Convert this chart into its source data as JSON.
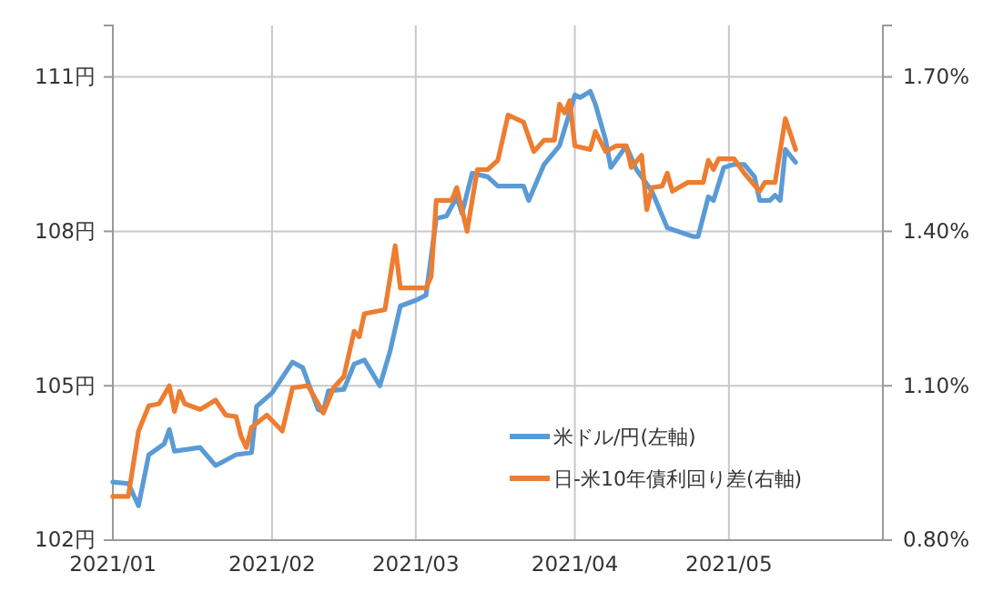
{
  "chart_data": {
    "type": "line",
    "grid": true,
    "legend": "bottom right",
    "line_style": "solid",
    "marker": "none",
    "xlim": [
      "2021-01-01",
      "2021-05-31"
    ],
    "xticks": [
      {
        "value": "2021-01-01",
        "label": "2021/01"
      },
      {
        "value": "2021-02-01",
        "label": "2021/02"
      },
      {
        "value": "2021-03-01",
        "label": "2021/03"
      },
      {
        "value": "2021-04-01",
        "label": "2021/04"
      },
      {
        "value": "2021-05-01",
        "label": "2021/05"
      }
    ],
    "ylim": [
      102,
      112
    ],
    "yticks": [
      {
        "value": 102,
        "label": "102円"
      },
      {
        "value": 105,
        "label": "105円"
      },
      {
        "value": 108,
        "label": "108円"
      },
      {
        "value": 111,
        "label": "111円"
      }
    ],
    "y2lim": [
      0.8,
      1.8
    ],
    "y2ticks": [
      {
        "value": 0.8,
        "label": "0.80%"
      },
      {
        "value": 1.1,
        "label": "1.10%"
      },
      {
        "value": 1.4,
        "label": "1.40%"
      },
      {
        "value": 1.7,
        "label": "1.70%"
      }
    ],
    "series": [
      {
        "name": "米ドル/円(左軸)",
        "color": "#5b9bd5",
        "x": [
          "2021-01-01",
          "2021-01-04",
          "2021-01-06",
          "2021-01-08",
          "2021-01-11",
          "2021-01-12",
          "2021-01-13",
          "2021-01-18",
          "2021-01-21",
          "2021-01-25",
          "2021-01-28",
          "2021-01-29",
          "2021-02-01",
          "2021-02-05",
          "2021-02-07",
          "2021-02-08",
          "2021-02-10",
          "2021-02-11",
          "2021-02-12",
          "2021-02-15",
          "2021-02-17",
          "2021-02-19",
          "2021-02-22",
          "2021-02-24",
          "2021-02-26",
          "2021-03-01",
          "2021-03-03",
          "2021-03-05",
          "2021-03-07",
          "2021-03-09",
          "2021-03-10",
          "2021-03-12",
          "2021-03-15",
          "2021-03-17",
          "2021-03-22",
          "2021-03-23",
          "2021-03-26",
          "2021-03-29",
          "2021-04-01",
          "2021-04-02",
          "2021-04-04",
          "2021-04-05",
          "2021-04-07",
          "2021-04-08",
          "2021-04-11",
          "2021-04-13",
          "2021-04-16",
          "2021-04-19",
          "2021-04-24",
          "2021-04-25",
          "2021-04-27",
          "2021-04-28",
          "2021-04-30",
          "2021-05-02",
          "2021-05-04",
          "2021-05-06",
          "2021-05-07",
          "2021-05-09",
          "2021-05-10",
          "2021-05-11",
          "2021-05-12",
          "2021-05-14"
        ],
        "values": [
          103.13,
          103.1,
          102.67,
          103.66,
          103.87,
          104.15,
          103.73,
          103.8,
          103.45,
          103.66,
          103.7,
          104.6,
          104.86,
          105.46,
          105.35,
          105.07,
          104.54,
          104.5,
          104.9,
          104.93,
          105.42,
          105.5,
          105.0,
          105.67,
          106.55,
          106.66,
          106.76,
          108.25,
          108.3,
          108.67,
          108.35,
          109.13,
          109.06,
          108.88,
          108.88,
          108.6,
          109.3,
          109.66,
          110.65,
          110.6,
          110.72,
          110.47,
          109.77,
          109.24,
          109.66,
          109.2,
          108.78,
          108.07,
          107.9,
          107.9,
          108.67,
          108.6,
          109.24,
          109.3,
          109.3,
          109.06,
          108.6,
          108.6,
          108.7,
          108.6,
          109.59,
          109.34
        ]
      },
      {
        "name": "日-米10年債利回り差(右軸)",
        "color": "#ed7d31",
        "axis": "y2",
        "x": [
          "2021-01-01",
          "2021-01-04",
          "2021-01-06",
          "2021-01-08",
          "2021-01-10",
          "2021-01-12",
          "2021-01-13",
          "2021-01-14",
          "2021-01-15",
          "2021-01-18",
          "2021-01-21",
          "2021-01-23",
          "2021-01-25",
          "2021-01-26",
          "2021-01-27",
          "2021-01-28",
          "2021-01-31",
          "2021-02-03",
          "2021-02-05",
          "2021-02-08",
          "2021-02-10",
          "2021-02-11",
          "2021-02-13",
          "2021-02-15",
          "2021-02-17",
          "2021-02-18",
          "2021-02-19",
          "2021-02-23",
          "2021-02-25",
          "2021-02-26",
          "2021-03-03",
          "2021-03-04",
          "2021-03-05",
          "2021-03-08",
          "2021-03-09",
          "2021-03-11",
          "2021-03-13",
          "2021-03-15",
          "2021-03-17",
          "2021-03-19",
          "2021-03-22",
          "2021-03-24",
          "2021-03-26",
          "2021-03-28",
          "2021-03-29",
          "2021-03-30",
          "2021-03-31",
          "2021-04-01",
          "2021-04-04",
          "2021-04-05",
          "2021-04-07",
          "2021-04-09",
          "2021-04-11",
          "2021-04-12",
          "2021-04-14",
          "2021-04-15",
          "2021-04-16",
          "2021-04-18",
          "2021-04-19",
          "2021-04-20",
          "2021-04-23",
          "2021-04-26",
          "2021-04-27",
          "2021-04-28",
          "2021-04-29",
          "2021-05-02",
          "2021-05-04",
          "2021-05-07",
          "2021-05-08",
          "2021-05-10",
          "2021-05-12",
          "2021-05-14"
        ],
        "values": [
          0.885,
          0.885,
          1.012,
          1.061,
          1.065,
          1.1,
          1.05,
          1.089,
          1.065,
          1.054,
          1.072,
          1.043,
          1.04,
          1.001,
          0.98,
          1.019,
          1.043,
          1.012,
          1.096,
          1.1,
          1.065,
          1.047,
          1.096,
          1.118,
          1.206,
          1.195,
          1.24,
          1.248,
          1.372,
          1.29,
          1.29,
          1.312,
          1.46,
          1.46,
          1.485,
          1.4,
          1.52,
          1.52,
          1.538,
          1.626,
          1.612,
          1.555,
          1.577,
          1.577,
          1.647,
          1.63,
          1.654,
          1.566,
          1.559,
          1.594,
          1.555,
          1.566,
          1.566,
          1.524,
          1.548,
          1.442,
          1.485,
          1.488,
          1.513,
          1.478,
          1.495,
          1.495,
          1.538,
          1.52,
          1.541,
          1.541,
          1.513,
          1.478,
          1.495,
          1.495,
          1.619,
          1.559
        ]
      }
    ]
  }
}
